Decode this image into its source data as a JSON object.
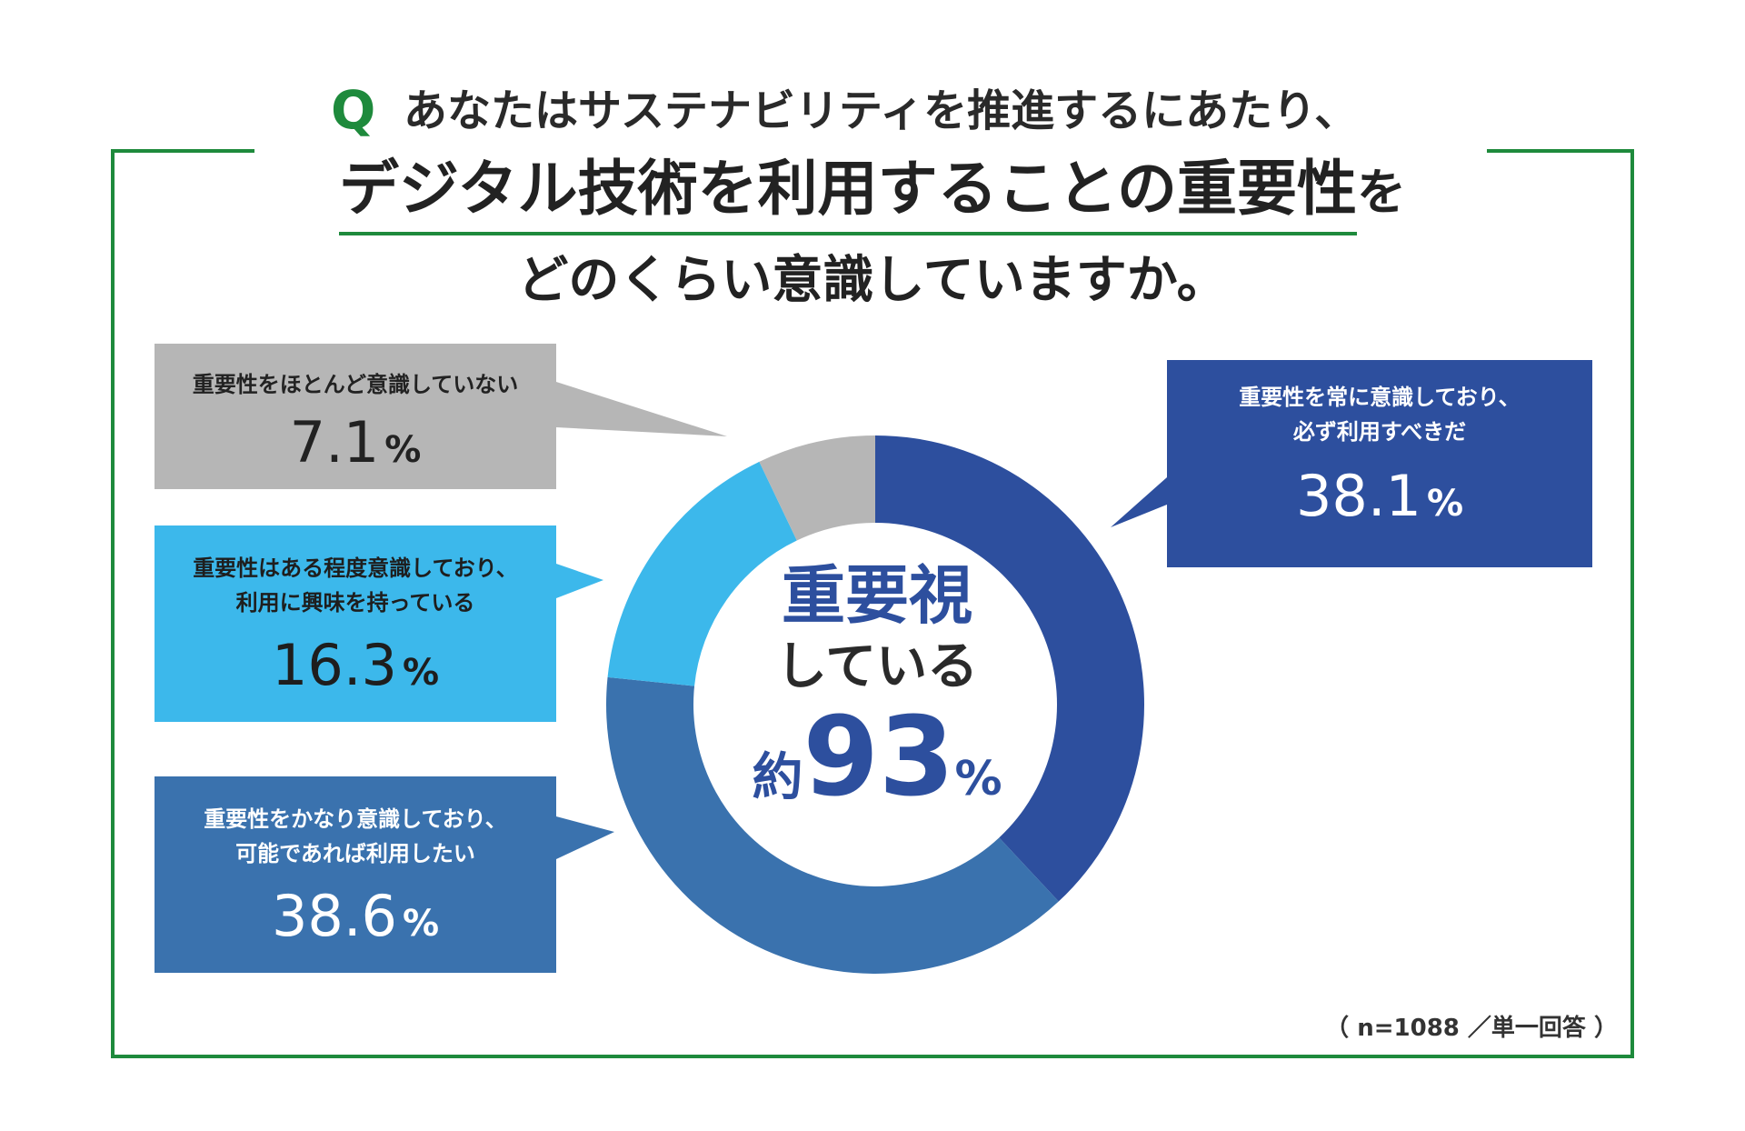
{
  "question": {
    "q_mark": "Q",
    "line1": "あなたはサステナビリティを推進するにあたり、",
    "line2_main": "デジタル技術を利用することの重要性",
    "line2_tail": "を",
    "line3": "どのくらい意識していますか。"
  },
  "center": {
    "line1": "重要視",
    "line2": "している",
    "prefix": "約",
    "number": "93",
    "percent": "%"
  },
  "callouts": [
    {
      "label_lines": [
        "重要性を常に意識しており、",
        "必ず利用すべきだ"
      ],
      "number": "38.1",
      "percent": "%"
    },
    {
      "label_lines": [
        "重要性をかなり意識しており、",
        "可能であれば利用したい"
      ],
      "number": "38.6",
      "percent": "%"
    },
    {
      "label_lines": [
        "重要性はある程度意識しており、",
        "利用に興味を持っている"
      ],
      "number": "16.3",
      "percent": "%"
    },
    {
      "label_lines": [
        "重要性をほとんど意識していない"
      ],
      "number": "7.1",
      "percent": "%"
    }
  ],
  "footnote": "（ n=1088 ／単一回答 ）",
  "colors": {
    "frame": "#1e8a3c",
    "always": "#2d4f9e",
    "considerably": "#3a72ae",
    "somewhat": "#3cb8eb",
    "hardly": "#b6b6b6",
    "center_text": "#2d4f9e"
  },
  "chart_data": {
    "type": "pie",
    "title": "あなたはサステナビリティを推進するにあたり、デジタル技術を利用することの重要性をどのくらい意識していますか。",
    "categories": [
      "重要性を常に意識しており、必ず利用すべきだ",
      "重要性をかなり意識しており、可能であれば利用したい",
      "重要性はある程度意識しており、利用に興味を持っている",
      "重要性をほとんど意識していない"
    ],
    "values": [
      38.1,
      38.6,
      16.3,
      7.1
    ],
    "colors": [
      "#2d4f9e",
      "#3a72ae",
      "#3cb8eb",
      "#b6b6b6"
    ],
    "donut": true,
    "center_label": "重要視している 約93%",
    "n": 1088
  }
}
